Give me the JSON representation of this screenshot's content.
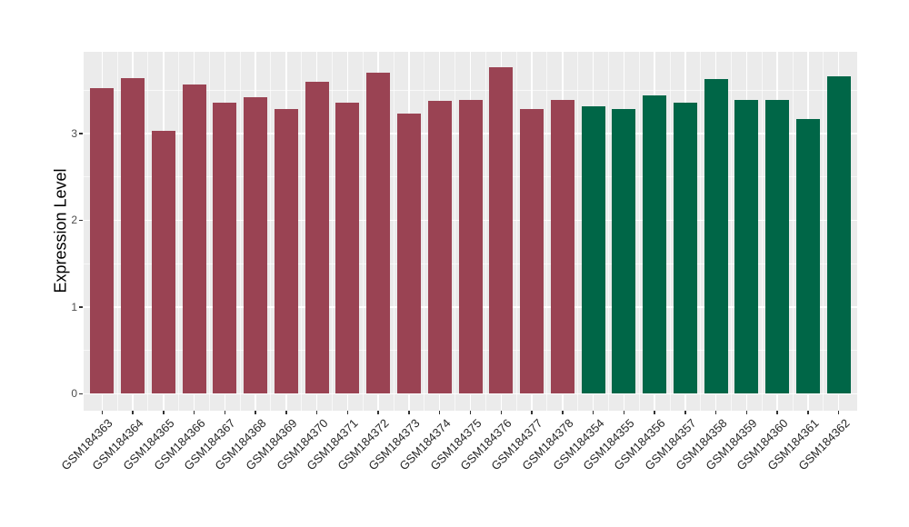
{
  "figure": {
    "background": "#FFFFFF",
    "panel_background": "#EBEBEB",
    "grid_color": "#FFFFFF"
  },
  "chart_data": {
    "type": "bar",
    "title": "",
    "xlabel": "",
    "ylabel": "Expression Level",
    "ylim": [
      -0.196,
      3.943
    ],
    "yticks": [
      0,
      1,
      2,
      3
    ],
    "yticks_minor": [
      0.5,
      1.5,
      2.5,
      3.5
    ],
    "grid": true,
    "legend": "none",
    "categories": [
      "GSM184363",
      "GSM184364",
      "GSM184365",
      "GSM184366",
      "GSM184367",
      "GSM184368",
      "GSM184369",
      "GSM184370",
      "GSM184371",
      "GSM184372",
      "GSM184373",
      "GSM184374",
      "GSM184375",
      "GSM184376",
      "GSM184377",
      "GSM184378",
      "GSM184354",
      "GSM184355",
      "GSM184356",
      "GSM184357",
      "GSM184358",
      "GSM184359",
      "GSM184360",
      "GSM184361",
      "GSM184362"
    ],
    "values": [
      3.52,
      3.64,
      3.03,
      3.57,
      3.36,
      3.42,
      3.28,
      3.6,
      3.36,
      3.7,
      3.23,
      3.38,
      3.39,
      3.76,
      3.28,
      3.39,
      3.31,
      3.28,
      3.44,
      3.36,
      3.63,
      3.39,
      3.39,
      3.17,
      3.66
    ],
    "groups": [
      {
        "name": "maroon-group",
        "color": "#9A4353",
        "count": 16
      },
      {
        "name": "green-group",
        "color": "#006647",
        "count": 9
      }
    ]
  }
}
